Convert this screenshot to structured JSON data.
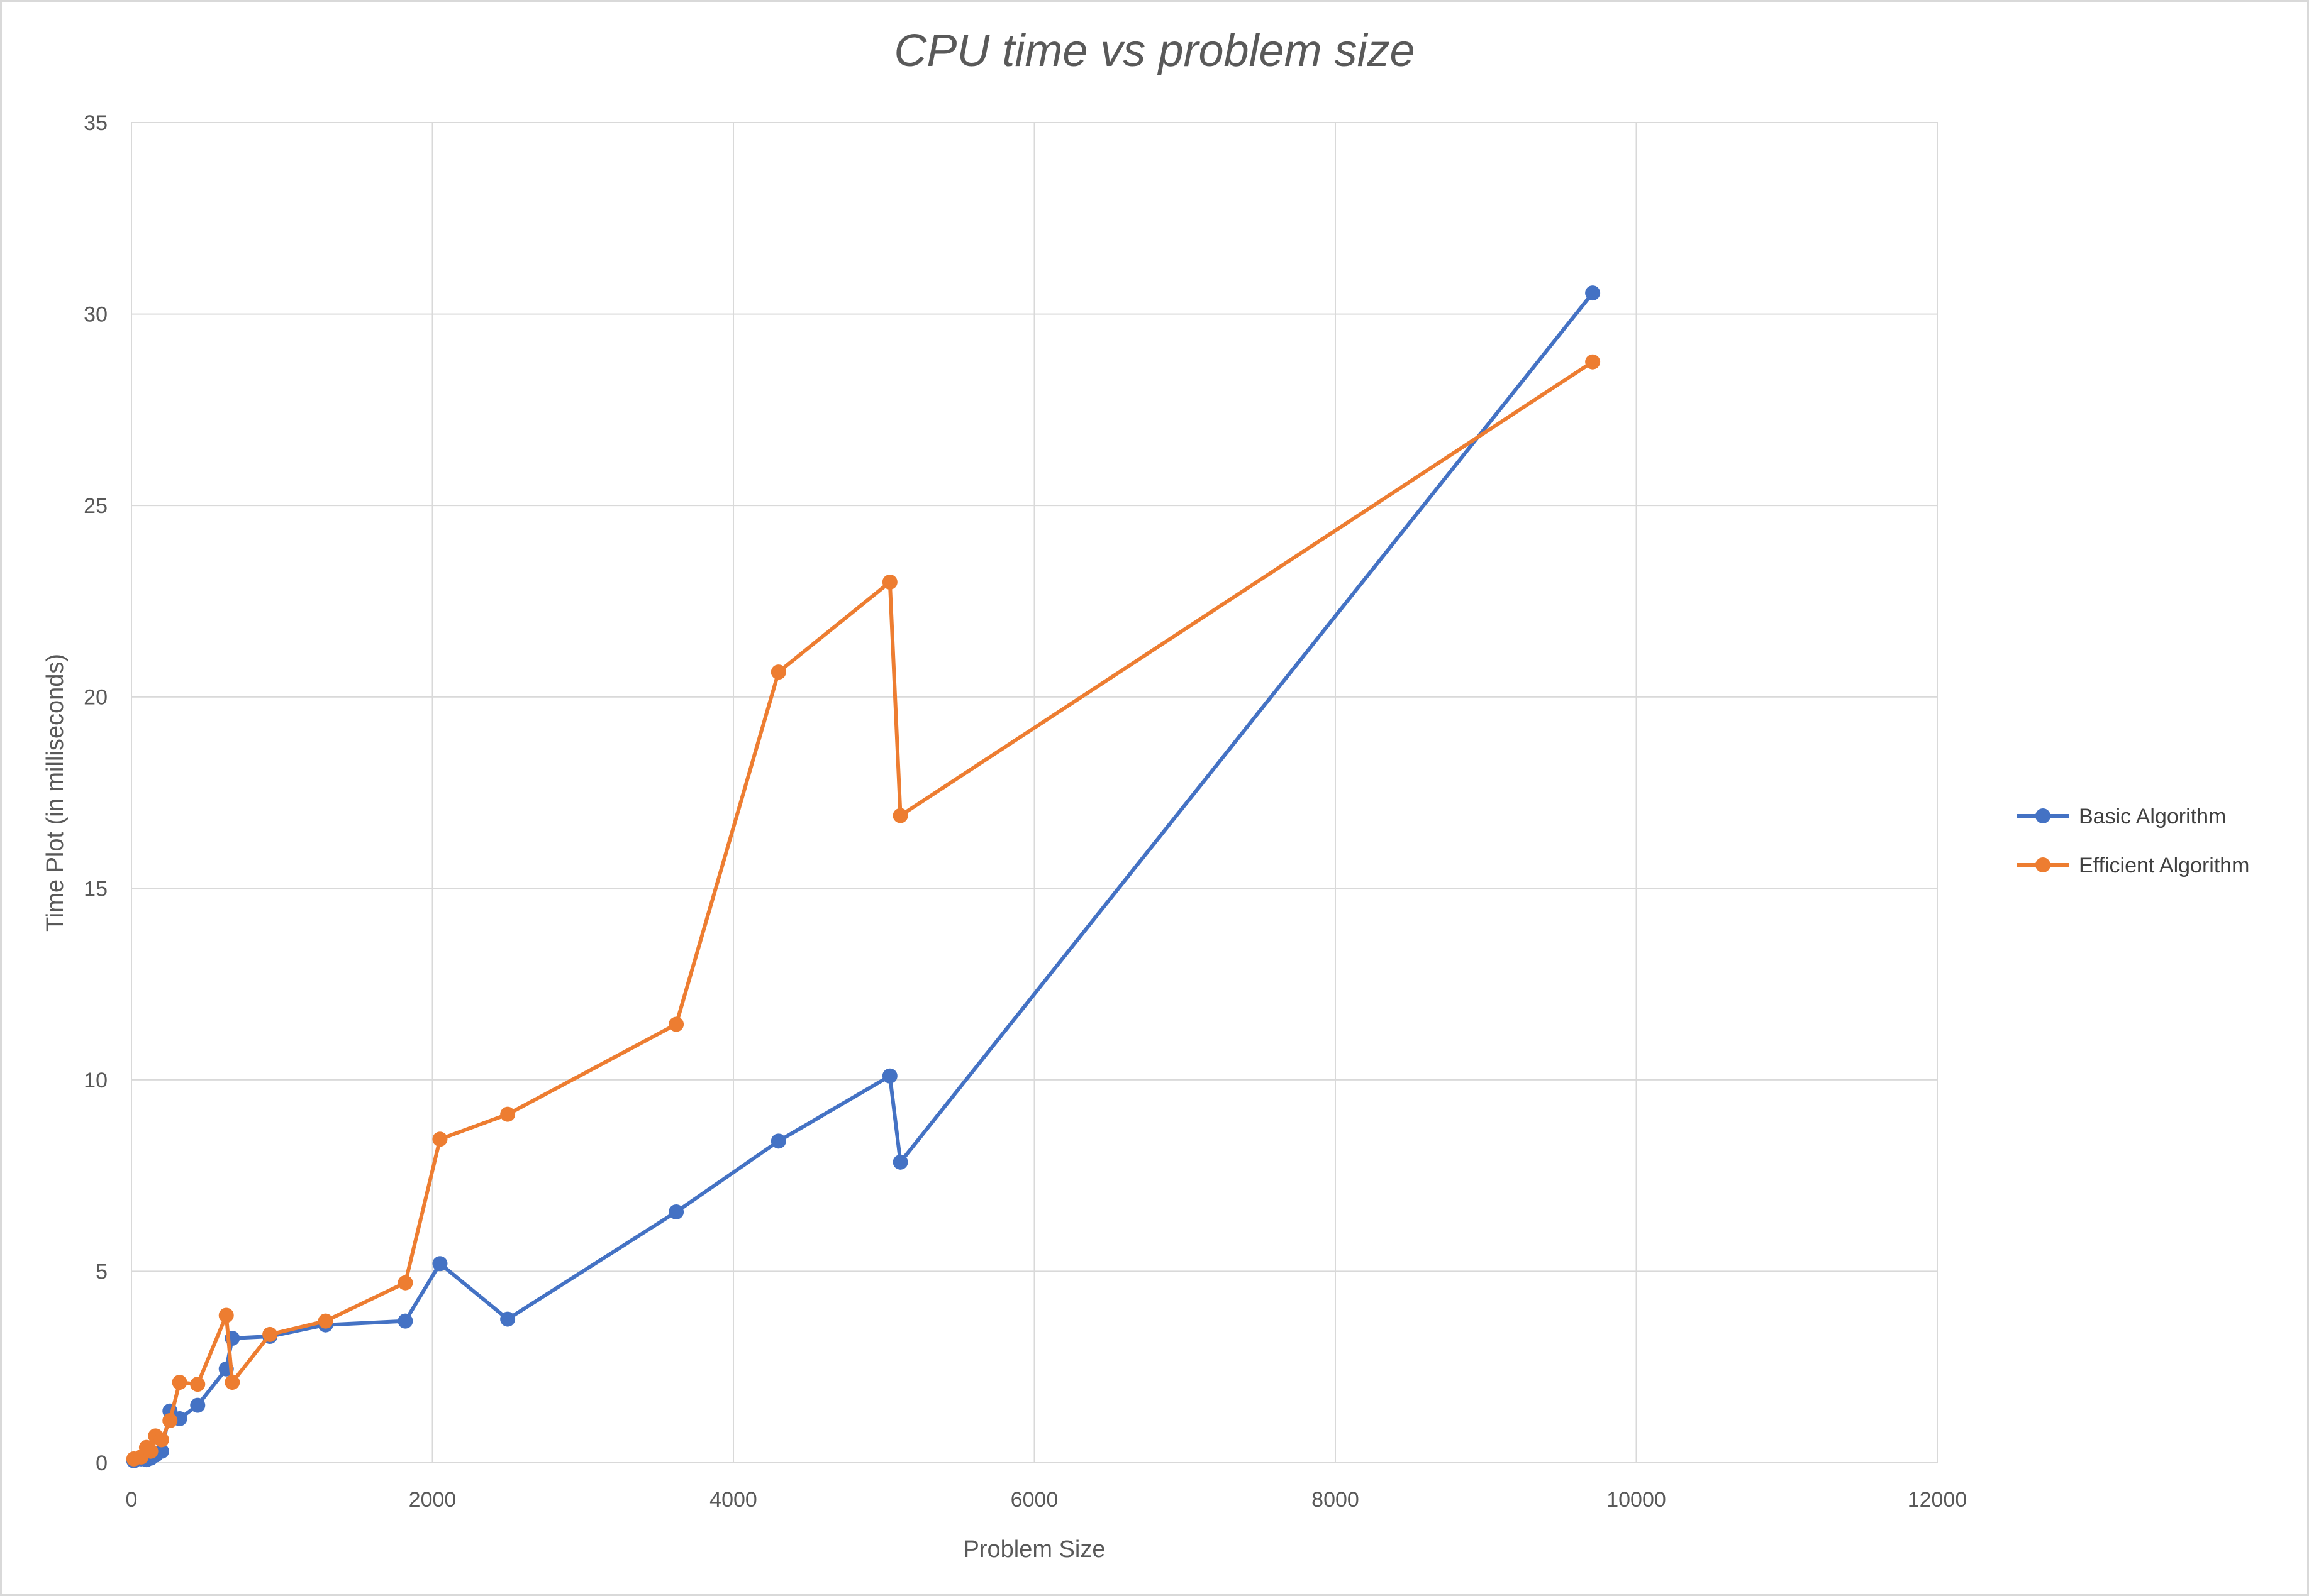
{
  "chart_data": {
    "type": "line",
    "title": "CPU time vs problem size",
    "xlabel": "Problem Size",
    "ylabel": "Time Plot (in milliseconds)",
    "xlim": [
      0,
      12000
    ],
    "ylim": [
      0,
      35
    ],
    "x_ticks": [
      "0",
      "2000",
      "4000",
      "6000",
      "8000",
      "10000",
      "12000"
    ],
    "y_ticks": [
      "0",
      "5",
      "10",
      "15",
      "20",
      "25",
      "30",
      "35"
    ],
    "grid": true,
    "legend_position": "right",
    "series": [
      {
        "name": "Basic Algorithm",
        "color": "#4472c4",
        "points": [
          [
            16,
            0.05
          ],
          [
            64,
            0.1
          ],
          [
            100,
            0.08
          ],
          [
            128,
            0.12
          ],
          [
            160,
            0.2
          ],
          [
            200,
            0.3
          ],
          [
            256,
            1.35
          ],
          [
            320,
            1.15
          ],
          [
            440,
            1.5
          ],
          [
            630,
            2.45
          ],
          [
            670,
            3.25
          ],
          [
            920,
            3.3
          ],
          [
            1290,
            3.6
          ],
          [
            1820,
            3.7
          ],
          [
            2050,
            5.2
          ],
          [
            2500,
            3.75
          ],
          [
            3620,
            6.55
          ],
          [
            4300,
            8.4
          ],
          [
            5040,
            10.1
          ],
          [
            5110,
            7.85
          ],
          [
            9710,
            30.55
          ]
        ]
      },
      {
        "name": "Efficient Algorithm",
        "color": "#ed7d31",
        "points": [
          [
            16,
            0.1
          ],
          [
            64,
            0.15
          ],
          [
            100,
            0.4
          ],
          [
            128,
            0.3
          ],
          [
            160,
            0.7
          ],
          [
            200,
            0.6
          ],
          [
            256,
            1.1
          ],
          [
            320,
            2.1
          ],
          [
            440,
            2.05
          ],
          [
            630,
            3.85
          ],
          [
            670,
            2.1
          ],
          [
            920,
            3.35
          ],
          [
            1290,
            3.7
          ],
          [
            1820,
            4.7
          ],
          [
            2050,
            8.45
          ],
          [
            2500,
            9.1
          ],
          [
            3620,
            11.45
          ],
          [
            4300,
            20.65
          ],
          [
            5040,
            23.0
          ],
          [
            5110,
            16.9
          ],
          [
            9710,
            28.75
          ]
        ]
      }
    ]
  }
}
